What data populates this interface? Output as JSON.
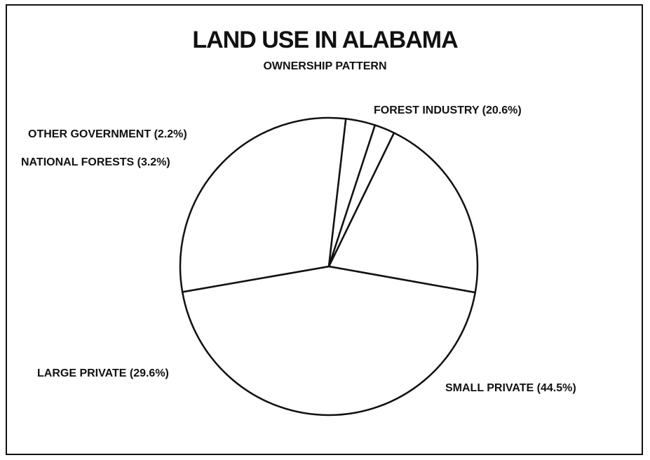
{
  "chart_data": {
    "type": "pie",
    "title": "LAND USE IN ALABAMA",
    "subtitle": "OWNERSHIP PATTERN",
    "slices": [
      {
        "label": "FOREST INDUSTRY (20.6%)",
        "name": "FOREST INDUSTRY",
        "value": 20.6
      },
      {
        "label": "SMALL PRIVATE (44.5%)",
        "name": "SMALL PRIVATE",
        "value": 44.5
      },
      {
        "label": "LARGE PRIVATE (29.6%)",
        "name": "LARGE PRIVATE",
        "value": 29.6
      },
      {
        "label": "NATIONAL FORESTS (3.2%)",
        "name": "NATIONAL FORESTS",
        "value": 3.2
      },
      {
        "label": "OTHER GOVERNMENT (2.2%)",
        "name": "OTHER GOVERNMENT",
        "value": 2.2
      }
    ],
    "colors": {
      "fill": "#ffffff",
      "stroke": "#111111"
    }
  }
}
